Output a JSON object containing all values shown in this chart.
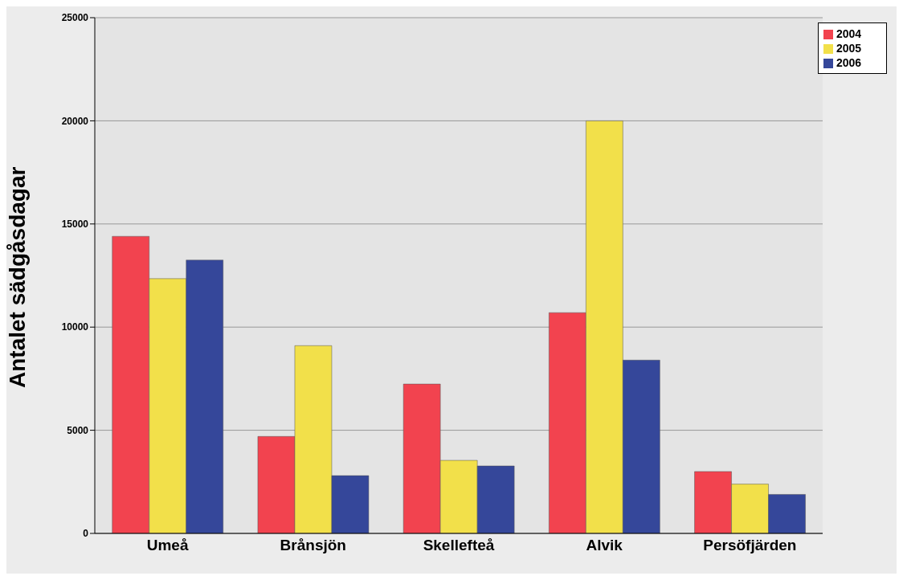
{
  "chart_data": {
    "type": "bar",
    "ylabel": "Antalet sädgåsdagar",
    "categories": [
      "Umeå",
      "Brånsjön",
      "Skellefteå",
      "Alvik",
      "Persöfjärden"
    ],
    "series": [
      {
        "name": "2004",
        "color": "#f2434f",
        "values": [
          14400,
          4700,
          7240,
          10700,
          3000
        ]
      },
      {
        "name": "2005",
        "color": "#f2e04a",
        "values": [
          12350,
          9100,
          3540,
          20000,
          2390
        ]
      },
      {
        "name": "2006",
        "color": "#35479a",
        "values": [
          13250,
          2800,
          3270,
          8400,
          1890
        ]
      }
    ],
    "ylim": [
      0,
      25000
    ],
    "yticks": [
      0,
      5000,
      10000,
      15000,
      20000,
      25000
    ],
    "grid": "y",
    "legend": "top right"
  }
}
